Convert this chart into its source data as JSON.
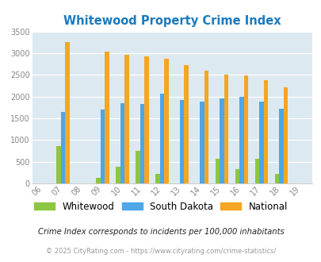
{
  "title": "Whitewood Property Crime Index",
  "title_color": "#1a7abf",
  "years": [
    "06",
    "07",
    "08",
    "09",
    "10",
    "11",
    "12",
    "13",
    "14",
    "15",
    "16",
    "17",
    "18",
    "19"
  ],
  "whitewood": [
    0,
    860,
    0,
    130,
    380,
    750,
    220,
    0,
    0,
    560,
    330,
    560,
    220,
    0
  ],
  "south_dakota": [
    0,
    1640,
    0,
    1700,
    1850,
    1820,
    2060,
    1920,
    1880,
    1950,
    2000,
    1880,
    1720,
    0
  ],
  "national": [
    0,
    3260,
    0,
    3040,
    2960,
    2920,
    2870,
    2730,
    2600,
    2500,
    2480,
    2380,
    2210,
    0
  ],
  "whitewood_color": "#8dc641",
  "south_dakota_color": "#4da6e8",
  "national_color": "#f5a623",
  "bg_color": "#dce9f0",
  "ylim": [
    0,
    3500
  ],
  "yticks": [
    0,
    500,
    1000,
    1500,
    2000,
    2500,
    3000,
    3500
  ],
  "legend_labels": [
    "Whitewood",
    "South Dakota",
    "National"
  ],
  "footnote1": "Crime Index corresponds to incidents per 100,000 inhabitants",
  "footnote2": "© 2025 CityRating.com - https://www.cityrating.com/crime-statistics/",
  "footnote1_color": "#222222",
  "footnote2_color": "#999999",
  "bar_width": 0.22,
  "figwidth": 4.06,
  "figheight": 3.3,
  "dpi": 100
}
